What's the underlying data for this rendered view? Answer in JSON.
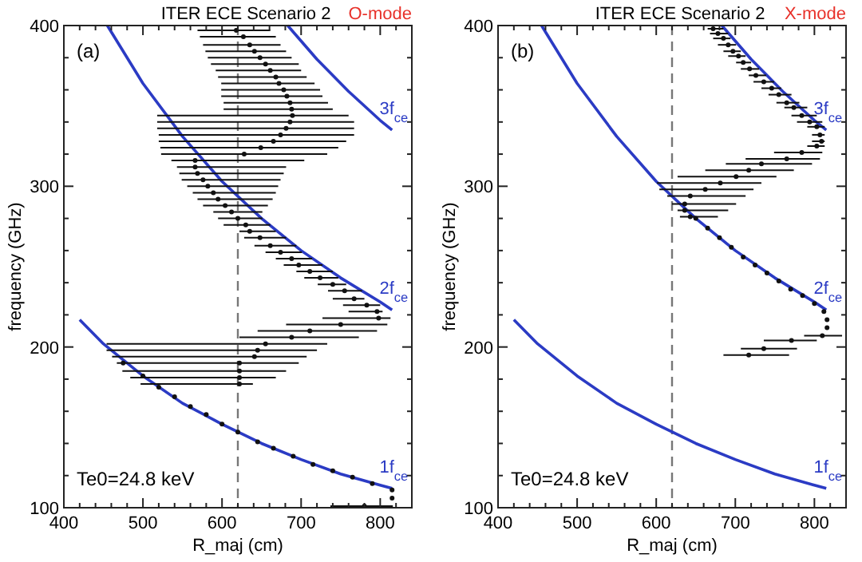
{
  "chart_data": [
    {
      "type": "scatter",
      "title": "ITER ECE Scenario 2",
      "subtitle": "O-mode",
      "xlabel": "R_maj (cm)",
      "ylabel": "frequency (GHz)",
      "xlim": [
        400,
        840
      ],
      "ylim": [
        100,
        400
      ],
      "xticks": [
        400,
        {
          "value": 420,
          "label": null
        },
        {
          "value": 440,
          "label": null
        },
        {
          "value": 460,
          "label": null
        },
        {
          "value": 480,
          "label": null
        },
        500,
        {
          "value": 520,
          "label": null
        },
        {
          "value": 540,
          "label": null
        },
        {
          "value": 560,
          "label": null
        },
        {
          "value": 580,
          "label": null
        },
        600,
        {
          "value": 620,
          "label": null
        },
        {
          "value": 640,
          "label": null
        },
        {
          "value": 660,
          "label": null
        },
        {
          "value": 680,
          "label": null
        },
        700,
        {
          "value": 720,
          "label": null
        },
        {
          "value": 740,
          "label": null
        },
        {
          "value": 760,
          "label": null
        },
        {
          "value": 780,
          "label": null
        },
        800,
        {
          "value": 820,
          "label": null
        }
      ],
      "yticks": [
        100,
        {
          "value": 120,
          "label": null
        },
        {
          "value": 140,
          "label": null
        },
        {
          "value": 160,
          "label": null
        },
        {
          "value": 180,
          "label": null
        },
        200,
        {
          "value": 220,
          "label": null
        },
        {
          "value": 240,
          "label": null
        },
        {
          "value": 260,
          "label": null
        },
        {
          "value": 280,
          "label": null
        },
        300,
        {
          "value": 320,
          "label": null
        },
        {
          "value": 340,
          "label": null
        },
        {
          "value": 360,
          "label": null
        },
        {
          "value": 380,
          "label": null
        },
        400
      ],
      "grid": false,
      "annotations": [
        "(a)",
        "Te0=24.8 keV"
      ],
      "ref_lines": [
        {
          "axis": "x",
          "value": 620,
          "color": "#777777",
          "line_style": "dashed"
        }
      ],
      "series": [
        {
          "type": "line",
          "name": "1f$_{ce}$",
          "color": "#2b3bc4",
          "x": [
            420,
            450,
            500,
            550,
            600,
            650,
            700,
            750,
            800,
            815
          ],
          "values": [
            217,
            202,
            182,
            165,
            152,
            140,
            130,
            121,
            114,
            112
          ]
        },
        {
          "type": "line",
          "name": "2f$_{ce}$",
          "color": "#2b3bc4",
          "x": [
            455,
            500,
            550,
            600,
            650,
            700,
            750,
            800,
            815
          ],
          "values": [
            400,
            364,
            331,
            303,
            280,
            260,
            243,
            228,
            223
          ]
        },
        {
          "type": "line",
          "name": "3f$_{ce}$",
          "color": "#2b3bc4",
          "x": [
            683,
            720,
            760,
            800,
            815
          ],
          "values": [
            400,
            379,
            359,
            341,
            335
          ]
        },
        {
          "color": "#111111",
          "marker": "circle",
          "x": [
            618,
            627,
            635,
            641,
            648,
            655,
            661,
            668,
            672,
            678,
            682,
            686,
            688,
            689,
            686,
            681,
            674,
            665,
            649,
            628,
            566,
            566,
            569,
            576,
            582,
            589,
            595,
            604,
            612,
            620,
            630,
            635,
            648,
            661,
            674,
            688,
            697,
            711,
            724,
            740,
            755,
            767,
            783,
            796,
            798,
            750,
            711,
            688,
            655,
            645,
            641,
            622,
            622,
            622,
            622,
            475,
            500,
            520,
            540,
            560,
            580,
            600,
            620,
            645,
            665,
            690,
            715,
            740,
            765,
            790,
            815,
            815,
            780
          ],
          "values": [
            397,
            393,
            388,
            384,
            380,
            376,
            372,
            368,
            364,
            360,
            356,
            352,
            348,
            344,
            340,
            336,
            332,
            328,
            324,
            320,
            316,
            312,
            308,
            304,
            300,
            296,
            292,
            288,
            284,
            280,
            276,
            272,
            268,
            263,
            259,
            255,
            251,
            247,
            243,
            239,
            235,
            230,
            226,
            222,
            218,
            214,
            210,
            206,
            202,
            198,
            194,
            190,
            185,
            181,
            177,
            190,
            182,
            175,
            169,
            163,
            158,
            152,
            147,
            141,
            137,
            132,
            127,
            123,
            119,
            115,
            111,
            106,
            101
          ],
          "xerrors": [
            [
              569,
              661
            ],
            [
              572,
              668
            ],
            [
              576,
              674
            ],
            [
              579,
              681
            ],
            [
              582,
              688
            ],
            [
              586,
              697
            ],
            [
              592,
              700
            ],
            [
              595,
              707
            ],
            [
              599,
              717
            ],
            [
              599,
              724
            ],
            [
              599,
              727
            ],
            [
              602,
              734
            ],
            [
              602,
              740
            ],
            [
              518,
              760
            ],
            [
              518,
              767
            ],
            [
              518,
              767
            ],
            [
              520,
              767
            ],
            [
              520,
              757
            ],
            [
              522,
              747
            ],
            [
              523,
              733
            ],
            [
              536,
              704
            ],
            [
              543,
              681
            ],
            [
              546,
              678
            ],
            [
              549,
              674
            ],
            [
              556,
              671
            ],
            [
              563,
              668
            ],
            [
              569,
              664
            ],
            [
              576,
              658
            ],
            [
              589,
              651
            ],
            [
              595,
              651
            ],
            [
              602,
              661
            ],
            [
              622,
              668
            ],
            [
              628,
              681
            ],
            [
              641,
              694
            ],
            [
              655,
              701
            ],
            [
              668,
              714
            ],
            [
              678,
              727
            ],
            [
              694,
              740
            ],
            [
              704,
              747
            ],
            [
              721,
              757
            ],
            [
              734,
              777
            ],
            [
              740,
              780
            ],
            [
              753,
              800
            ],
            [
              760,
              803
            ],
            [
              727,
              813
            ],
            [
              681,
              809
            ],
            [
              645,
              796
            ],
            [
              622,
              773
            ],
            [
              454,
              733
            ],
            [
              454,
              720
            ],
            [
              461,
              707
            ],
            [
              467,
              697
            ],
            [
              474,
              681
            ],
            [
              484,
              668
            ],
            [
              497,
              639
            ],
            null,
            null,
            null,
            null,
            null,
            null,
            null,
            null,
            null,
            null,
            null,
            null,
            null,
            null,
            null,
            null,
            null,
            [
              737,
              816
            ]
          ]
        }
      ]
    },
    {
      "type": "scatter",
      "title": "ITER ECE Scenario 2",
      "subtitle": "X-mode",
      "xlabel": "R_maj (cm)",
      "ylabel": "frequency (GHz)",
      "xlim": [
        400,
        840
      ],
      "ylim": [
        100,
        400
      ],
      "xticks": [
        400,
        {
          "value": 420,
          "label": null
        },
        {
          "value": 440,
          "label": null
        },
        {
          "value": 460,
          "label": null
        },
        {
          "value": 480,
          "label": null
        },
        500,
        {
          "value": 520,
          "label": null
        },
        {
          "value": 540,
          "label": null
        },
        {
          "value": 560,
          "label": null
        },
        {
          "value": 580,
          "label": null
        },
        600,
        {
          "value": 620,
          "label": null
        },
        {
          "value": 640,
          "label": null
        },
        {
          "value": 660,
          "label": null
        },
        {
          "value": 680,
          "label": null
        },
        700,
        {
          "value": 720,
          "label": null
        },
        {
          "value": 740,
          "label": null
        },
        {
          "value": 760,
          "label": null
        },
        {
          "value": 780,
          "label": null
        },
        800,
        {
          "value": 820,
          "label": null
        }
      ],
      "yticks": [
        100,
        {
          "value": 120,
          "label": null
        },
        {
          "value": 140,
          "label": null
        },
        {
          "value": 160,
          "label": null
        },
        {
          "value": 180,
          "label": null
        },
        200,
        {
          "value": 220,
          "label": null
        },
        {
          "value": 240,
          "label": null
        },
        {
          "value": 260,
          "label": null
        },
        {
          "value": 280,
          "label": null
        },
        300,
        {
          "value": 320,
          "label": null
        },
        {
          "value": 340,
          "label": null
        },
        {
          "value": 360,
          "label": null
        },
        {
          "value": 380,
          "label": null
        },
        400
      ],
      "grid": false,
      "annotations": [
        "(b)",
        "Te0=24.8 keV"
      ],
      "ref_lines": [
        {
          "axis": "x",
          "value": 620,
          "color": "#777777",
          "line_style": "dashed"
        }
      ],
      "series": [
        {
          "type": "line",
          "name": "1f$_{ce}$",
          "color": "#2b3bc4",
          "x": [
            420,
            450,
            500,
            550,
            600,
            650,
            700,
            750,
            800,
            815
          ],
          "values": [
            217,
            202,
            182,
            165,
            152,
            140,
            130,
            121,
            114,
            112
          ]
        },
        {
          "type": "line",
          "name": "2f$_{ce}$",
          "color": "#2b3bc4",
          "x": [
            455,
            500,
            550,
            600,
            650,
            700,
            750,
            800,
            815
          ],
          "values": [
            400,
            364,
            331,
            303,
            280,
            260,
            243,
            228,
            223
          ]
        },
        {
          "type": "line",
          "name": "3f$_{ce}$",
          "color": "#2b3bc4",
          "x": [
            683,
            720,
            760,
            800,
            815
          ],
          "values": [
            400,
            379,
            359,
            341,
            335
          ]
        },
        {
          "color": "#111111",
          "marker": "circle",
          "x": [
            672,
            678,
            685,
            691,
            697,
            704,
            710,
            718,
            726,
            736,
            746,
            755,
            765,
            774,
            784,
            794,
            803,
            807,
            809,
            803,
            784,
            765,
            733,
            717,
            701,
            681,
            662,
            643,
            636,
            636,
            643,
            650,
            665,
            680,
            695,
            710,
            725,
            740,
            755,
            770,
            785,
            800,
            812,
            816,
            816,
            810,
            771,
            736,
            717
          ],
          "values": [
            398,
            395,
            392,
            388,
            384,
            381,
            377,
            373,
            369,
            365,
            361,
            357,
            352,
            349,
            344,
            340,
            337,
            332,
            328,
            325,
            321,
            317,
            314,
            310,
            306,
            302,
            298,
            294,
            289,
            285,
            281,
            280,
            274,
            268,
            262,
            256,
            251,
            246,
            241,
            236,
            232,
            227,
            222,
            217,
            212,
            207,
            204,
            199,
            195
          ],
          "xerrors": [
            [
              665,
              685
            ],
            [
              668,
              691
            ],
            [
              672,
              694
            ],
            [
              678,
              701
            ],
            [
              685,
              707
            ],
            [
              691,
              713
            ],
            [
              701,
              720
            ],
            [
              707,
              730
            ],
            [
              717,
              739
            ],
            [
              723,
              749
            ],
            [
              733,
              758
            ],
            [
              742,
              771
            ],
            [
              752,
              781
            ],
            [
              762,
              791
            ],
            [
              771,
              803
            ],
            [
              778,
              810
            ],
            [
              791,
              813
            ],
            [
              797,
              813
            ],
            [
              797,
              813
            ],
            [
              791,
              813
            ],
            [
              749,
              810
            ],
            [
              713,
              807
            ],
            [
              688,
              797
            ],
            [
              662,
              774
            ],
            [
              627,
              752
            ],
            [
              601,
              733
            ],
            [
              604,
              723
            ],
            [
              614,
              713
            ],
            [
              620,
              701
            ],
            [
              627,
              691
            ],
            [
              630,
              678
            ],
            null,
            null,
            null,
            null,
            null,
            null,
            null,
            null,
            null,
            null,
            null,
            null,
            null,
            null,
            [
              787,
              835
            ],
            [
              736,
              803
            ],
            [
              707,
              778
            ],
            [
              685,
              768
            ]
          ]
        }
      ]
    }
  ]
}
